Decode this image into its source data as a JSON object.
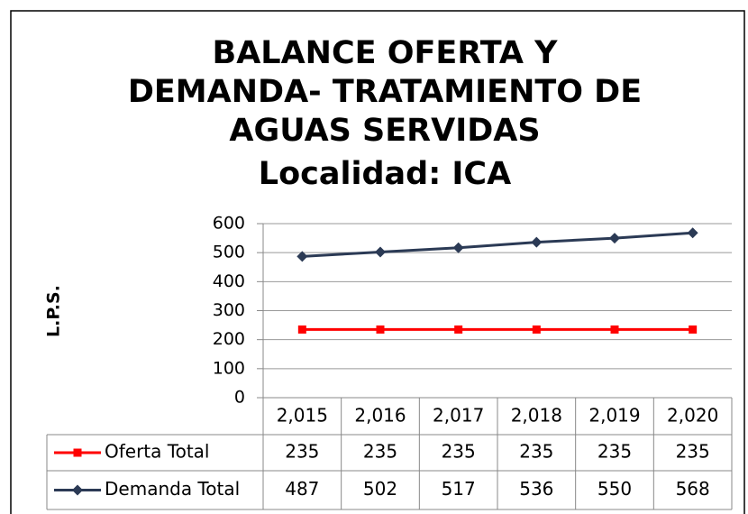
{
  "chart_data": {
    "type": "line",
    "title": [
      "BALANCE  OFERTA Y",
      "DEMANDA- TRATAMIENTO DE",
      "AGUAS SERVIDAS"
    ],
    "subtitle": "Localidad: ICA",
    "y_label": "L.P.S.",
    "categories": [
      "2,015",
      "2,016",
      "2,017",
      "2,018",
      "2,019",
      "2,020"
    ],
    "series": [
      {
        "name": "Oferta Total",
        "color": "#ff0000",
        "marker": "square",
        "values": [
          235,
          235,
          235,
          235,
          235,
          235
        ]
      },
      {
        "name": "Demanda Total",
        "color": "#2b3a55",
        "marker": "diamond",
        "values": [
          487,
          502,
          517,
          536,
          550,
          568
        ]
      }
    ],
    "ylim": [
      0,
      600
    ],
    "yticks": [
      0,
      100,
      200,
      300,
      400,
      500,
      600
    ],
    "grid": true,
    "data_table": true
  }
}
